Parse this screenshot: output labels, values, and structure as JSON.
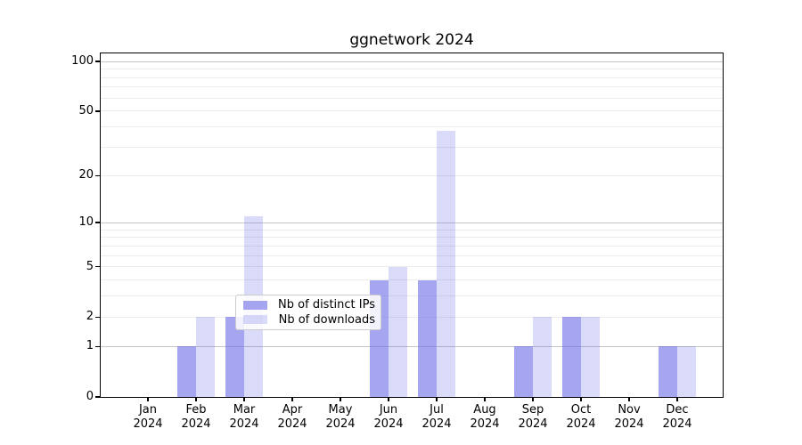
{
  "chart_data": {
    "type": "bar",
    "title": "ggnetwork 2024",
    "categories": [
      "Jan",
      "Feb",
      "Mar",
      "Apr",
      "May",
      "Jun",
      "Jul",
      "Aug",
      "Sep",
      "Oct",
      "Nov",
      "Dec"
    ],
    "year_label": "2024",
    "series": [
      {
        "name": "Nb of distinct IPs",
        "color": "rgba(102,102,230,0.58)",
        "values": [
          0,
          1,
          2,
          0,
          0,
          4,
          4,
          0,
          1,
          2,
          0,
          1
        ]
      },
      {
        "name": "Nb of downloads",
        "color": "rgba(102,102,230,0.24)",
        "values": [
          0,
          2,
          11,
          0,
          0,
          5,
          38,
          0,
          2,
          2,
          0,
          1
        ]
      }
    ],
    "yscale": "log1p",
    "ylim": [
      0,
      112
    ],
    "y_ticks": [
      {
        "label": "0",
        "value": 0
      },
      {
        "label": "1",
        "value": 1
      },
      {
        "label": "2",
        "value": 2
      },
      {
        "label": "5",
        "value": 5
      },
      {
        "label": "10",
        "value": 10
      },
      {
        "label": "20",
        "value": 20
      },
      {
        "label": "50",
        "value": 50
      },
      {
        "label": "100",
        "value": 100
      }
    ],
    "y_major_grid": [
      1,
      10,
      100
    ],
    "y_minor_grid": [
      2,
      3,
      4,
      5,
      6,
      7,
      8,
      9,
      20,
      30,
      40,
      50,
      60,
      70,
      80,
      90
    ],
    "grid": "horizontal",
    "legend_position": "lower center inside"
  }
}
